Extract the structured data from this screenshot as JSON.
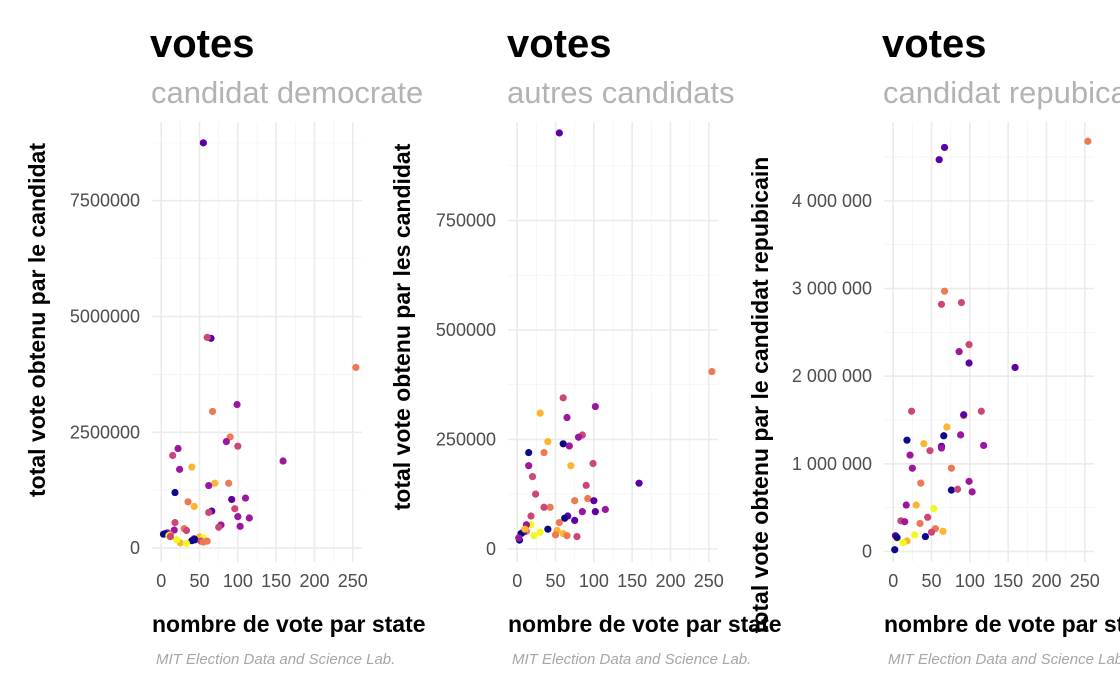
{
  "palette": [
    "#0d0887",
    "#5c01a6",
    "#9c179e",
    "#cc4778",
    "#ed7953",
    "#fdb42f",
    "#f0f921"
  ],
  "chart_data": [
    {
      "type": "scatter",
      "title": "votes",
      "subtitle": "candidat democrate",
      "xlabel": "nombre de vote par state",
      "ylabel": "total vote obtenu par le candidat",
      "caption": "MIT Election Data and Science Lab.",
      "xlim": [
        -12,
        262
      ],
      "ylim": [
        -300000,
        9200000
      ],
      "xticks": [
        0,
        50,
        100,
        150,
        200,
        250
      ],
      "xtick_labels": [
        "0",
        "50",
        "100",
        "150",
        "200",
        "250"
      ],
      "yticks": [
        0,
        2500000,
        5000000,
        7500000
      ],
      "ytick_labels": [
        "0",
        "2500000",
        "5000000",
        "7500000"
      ],
      "points": [
        {
          "x": 55,
          "y": 8750000,
          "c": 1
        },
        {
          "x": 65,
          "y": 4530000,
          "c": 1
        },
        {
          "x": 60,
          "y": 4550000,
          "c": 3
        },
        {
          "x": 254,
          "y": 3900000,
          "c": 4
        },
        {
          "x": 99,
          "y": 3100000,
          "c": 2
        },
        {
          "x": 67,
          "y": 2950000,
          "c": 4
        },
        {
          "x": 159,
          "y": 1880000,
          "c": 2
        },
        {
          "x": 90,
          "y": 2400000,
          "c": 4
        },
        {
          "x": 85,
          "y": 2300000,
          "c": 2
        },
        {
          "x": 100,
          "y": 2200000,
          "c": 3
        },
        {
          "x": 22,
          "y": 2150000,
          "c": 2
        },
        {
          "x": 15,
          "y": 2000000,
          "c": 3
        },
        {
          "x": 40,
          "y": 1750000,
          "c": 5
        },
        {
          "x": 24,
          "y": 1700000,
          "c": 2
        },
        {
          "x": 88,
          "y": 1400000,
          "c": 4
        },
        {
          "x": 70,
          "y": 1400000,
          "c": 5
        },
        {
          "x": 62,
          "y": 1350000,
          "c": 2
        },
        {
          "x": 18,
          "y": 1200000,
          "c": 0
        },
        {
          "x": 110,
          "y": 1080000,
          "c": 2
        },
        {
          "x": 92,
          "y": 1050000,
          "c": 1
        },
        {
          "x": 35,
          "y": 1000000,
          "c": 4
        },
        {
          "x": 43,
          "y": 900000,
          "c": 5
        },
        {
          "x": 96,
          "y": 850000,
          "c": 3
        },
        {
          "x": 66,
          "y": 800000,
          "c": 1
        },
        {
          "x": 62,
          "y": 770000,
          "c": 3
        },
        {
          "x": 100,
          "y": 680000,
          "c": 2
        },
        {
          "x": 115,
          "y": 650000,
          "c": 2
        },
        {
          "x": 18,
          "y": 550000,
          "c": 3
        },
        {
          "x": 78,
          "y": 500000,
          "c": 2
        },
        {
          "x": 103,
          "y": 470000,
          "c": 2
        },
        {
          "x": 75,
          "y": 450000,
          "c": 3
        },
        {
          "x": 30,
          "y": 420000,
          "c": 4
        },
        {
          "x": 17,
          "y": 390000,
          "c": 2
        },
        {
          "x": 33,
          "y": 380000,
          "c": 3
        },
        {
          "x": 8,
          "y": 330000,
          "c": 2
        },
        {
          "x": 5,
          "y": 310000,
          "c": 0
        },
        {
          "x": 3,
          "y": 300000,
          "c": 0
        },
        {
          "x": 12,
          "y": 290000,
          "c": 4
        },
        {
          "x": 10,
          "y": 270000,
          "c": 6
        },
        {
          "x": 50,
          "y": 240000,
          "c": 5
        },
        {
          "x": 55,
          "y": 220000,
          "c": 6
        },
        {
          "x": 43,
          "y": 200000,
          "c": 1
        },
        {
          "x": 44,
          "y": 180000,
          "c": 0
        },
        {
          "x": 40,
          "y": 160000,
          "c": 0
        },
        {
          "x": 52,
          "y": 150000,
          "c": 3
        },
        {
          "x": 60,
          "y": 150000,
          "c": 4
        },
        {
          "x": 55,
          "y": 130000,
          "c": 4
        },
        {
          "x": 25,
          "y": 110000,
          "c": 5
        },
        {
          "x": 20,
          "y": 180000,
          "c": 6
        },
        {
          "x": 33,
          "y": 100000,
          "c": 6
        },
        {
          "x": 12,
          "y": 250000,
          "c": 3
        }
      ]
    },
    {
      "type": "scatter",
      "title": "votes",
      "subtitle": "autres candidats",
      "xlabel": "nombre de vote par state",
      "ylabel": "total vote obtenu par les candidat",
      "caption": "MIT Election Data and Science Lab.",
      "xlim": [
        -12,
        262
      ],
      "ylim": [
        -30000,
        975000
      ],
      "xticks": [
        0,
        50,
        100,
        150,
        200,
        250
      ],
      "xtick_labels": [
        "0",
        "50",
        "100",
        "150",
        "200",
        "250"
      ],
      "yticks": [
        0,
        250000,
        500000,
        750000
      ],
      "ytick_labels": [
        "0",
        "250000",
        "500000",
        "750000"
      ],
      "points": [
        {
          "x": 55,
          "y": 950000,
          "c": 1
        },
        {
          "x": 254,
          "y": 405000,
          "c": 4
        },
        {
          "x": 60,
          "y": 345000,
          "c": 3
        },
        {
          "x": 102,
          "y": 325000,
          "c": 2
        },
        {
          "x": 30,
          "y": 310000,
          "c": 5
        },
        {
          "x": 65,
          "y": 300000,
          "c": 2
        },
        {
          "x": 85,
          "y": 260000,
          "c": 3
        },
        {
          "x": 80,
          "y": 255000,
          "c": 2
        },
        {
          "x": 40,
          "y": 245000,
          "c": 5
        },
        {
          "x": 60,
          "y": 240000,
          "c": 0
        },
        {
          "x": 68,
          "y": 235000,
          "c": 2
        },
        {
          "x": 35,
          "y": 220000,
          "c": 4
        },
        {
          "x": 15,
          "y": 220000,
          "c": 0
        },
        {
          "x": 99,
          "y": 195000,
          "c": 3
        },
        {
          "x": 70,
          "y": 190000,
          "c": 5
        },
        {
          "x": 15,
          "y": 190000,
          "c": 2
        },
        {
          "x": 20,
          "y": 165000,
          "c": 3
        },
        {
          "x": 159,
          "y": 150000,
          "c": 1
        },
        {
          "x": 90,
          "y": 145000,
          "c": 3
        },
        {
          "x": 24,
          "y": 125000,
          "c": 3
        },
        {
          "x": 92,
          "y": 115000,
          "c": 4
        },
        {
          "x": 100,
          "y": 110000,
          "c": 1
        },
        {
          "x": 75,
          "y": 110000,
          "c": 4
        },
        {
          "x": 43,
          "y": 95000,
          "c": 4
        },
        {
          "x": 35,
          "y": 95000,
          "c": 3
        },
        {
          "x": 115,
          "y": 90000,
          "c": 2
        },
        {
          "x": 102,
          "y": 85000,
          "c": 1
        },
        {
          "x": 85,
          "y": 85000,
          "c": 2
        },
        {
          "x": 66,
          "y": 75000,
          "c": 1
        },
        {
          "x": 18,
          "y": 75000,
          "c": 3
        },
        {
          "x": 62,
          "y": 70000,
          "c": 0
        },
        {
          "x": 75,
          "y": 65000,
          "c": 1
        },
        {
          "x": 55,
          "y": 60000,
          "c": 4
        },
        {
          "x": 18,
          "y": 55000,
          "c": 6
        },
        {
          "x": 12,
          "y": 55000,
          "c": 2
        },
        {
          "x": 40,
          "y": 45000,
          "c": 0
        },
        {
          "x": 52,
          "y": 42000,
          "c": 5
        },
        {
          "x": 12,
          "y": 40000,
          "c": 4
        },
        {
          "x": 8,
          "y": 38000,
          "c": 1
        },
        {
          "x": 5,
          "y": 35000,
          "c": 0
        },
        {
          "x": 50,
          "y": 32000,
          "c": 4
        },
        {
          "x": 22,
          "y": 30000,
          "c": 6
        },
        {
          "x": 78,
          "y": 28000,
          "c": 3
        },
        {
          "x": 3,
          "y": 20000,
          "c": 0
        },
        {
          "x": 2,
          "y": 25000,
          "c": 2
        },
        {
          "x": 60,
          "y": 35000,
          "c": 5
        },
        {
          "x": 10,
          "y": 45000,
          "c": 5
        },
        {
          "x": 30,
          "y": 38000,
          "c": 6
        },
        {
          "x": 65,
          "y": 30000,
          "c": 4
        }
      ]
    },
    {
      "type": "scatter",
      "title": "votes",
      "subtitle": "candidat repubicain",
      "xlabel": "nombre de vote par state",
      "ylabel": "total vote obtenu par le candidat repubicain",
      "caption": "MIT Election Data and Science Lab.",
      "xlim": [
        -12,
        262
      ],
      "ylim": [
        -120000,
        4900000
      ],
      "xticks": [
        0,
        50,
        100,
        150,
        200,
        250
      ],
      "xtick_labels": [
        "0",
        "50",
        "100",
        "150",
        "200",
        "250"
      ],
      "yticks": [
        0,
        1000000,
        2000000,
        3000000,
        4000000
      ],
      "ytick_labels": [
        "0",
        "1 000 000",
        "2 000 000",
        "3 000 000",
        "4 000 000"
      ],
      "points": [
        {
          "x": 254,
          "y": 4680000,
          "c": 4
        },
        {
          "x": 67,
          "y": 4610000,
          "c": 1
        },
        {
          "x": 60,
          "y": 4470000,
          "c": 1
        },
        {
          "x": 67,
          "y": 2970000,
          "c": 4
        },
        {
          "x": 89,
          "y": 2840000,
          "c": 3
        },
        {
          "x": 63,
          "y": 2820000,
          "c": 3
        },
        {
          "x": 99,
          "y": 2360000,
          "c": 3
        },
        {
          "x": 86,
          "y": 2280000,
          "c": 2
        },
        {
          "x": 99,
          "y": 2150000,
          "c": 1
        },
        {
          "x": 159,
          "y": 2100000,
          "c": 1
        },
        {
          "x": 24,
          "y": 1600000,
          "c": 3
        },
        {
          "x": 115,
          "y": 1600000,
          "c": 3
        },
        {
          "x": 92,
          "y": 1550000,
          "c": 4
        },
        {
          "x": 92,
          "y": 1560000,
          "c": 1
        },
        {
          "x": 70,
          "y": 1420000,
          "c": 5
        },
        {
          "x": 88,
          "y": 1330000,
          "c": 2
        },
        {
          "x": 66,
          "y": 1320000,
          "c": 0
        },
        {
          "x": 18,
          "y": 1270000,
          "c": 0
        },
        {
          "x": 40,
          "y": 1230000,
          "c": 5
        },
        {
          "x": 118,
          "y": 1210000,
          "c": 2
        },
        {
          "x": 63,
          "y": 1200000,
          "c": 1
        },
        {
          "x": 63,
          "y": 1180000,
          "c": 2
        },
        {
          "x": 48,
          "y": 1150000,
          "c": 3
        },
        {
          "x": 22,
          "y": 1100000,
          "c": 2
        },
        {
          "x": 76,
          "y": 950000,
          "c": 4
        },
        {
          "x": 25,
          "y": 950000,
          "c": 2
        },
        {
          "x": 99,
          "y": 800000,
          "c": 2
        },
        {
          "x": 36,
          "y": 780000,
          "c": 4
        },
        {
          "x": 103,
          "y": 680000,
          "c": 2
        },
        {
          "x": 76,
          "y": 700000,
          "c": 0
        },
        {
          "x": 84,
          "y": 710000,
          "c": 3
        },
        {
          "x": 17,
          "y": 530000,
          "c": 2
        },
        {
          "x": 30,
          "y": 530000,
          "c": 5
        },
        {
          "x": 53,
          "y": 490000,
          "c": 6
        },
        {
          "x": 45,
          "y": 390000,
          "c": 3
        },
        {
          "x": 10,
          "y": 350000,
          "c": 3
        },
        {
          "x": 15,
          "y": 340000,
          "c": 2
        },
        {
          "x": 35,
          "y": 320000,
          "c": 4
        },
        {
          "x": 55,
          "y": 260000,
          "c": 4
        },
        {
          "x": 65,
          "y": 230000,
          "c": 5
        },
        {
          "x": 50,
          "y": 220000,
          "c": 3
        },
        {
          "x": 28,
          "y": 190000,
          "c": 6
        },
        {
          "x": 42,
          "y": 170000,
          "c": 0
        },
        {
          "x": 3,
          "y": 180000,
          "c": 1
        },
        {
          "x": 5,
          "y": 150000,
          "c": 6
        },
        {
          "x": 5,
          "y": 160000,
          "c": 0
        },
        {
          "x": 18,
          "y": 120000,
          "c": 5
        },
        {
          "x": 13,
          "y": 100000,
          "c": 6
        },
        {
          "x": 2,
          "y": 20000,
          "c": 0
        }
      ]
    }
  ]
}
